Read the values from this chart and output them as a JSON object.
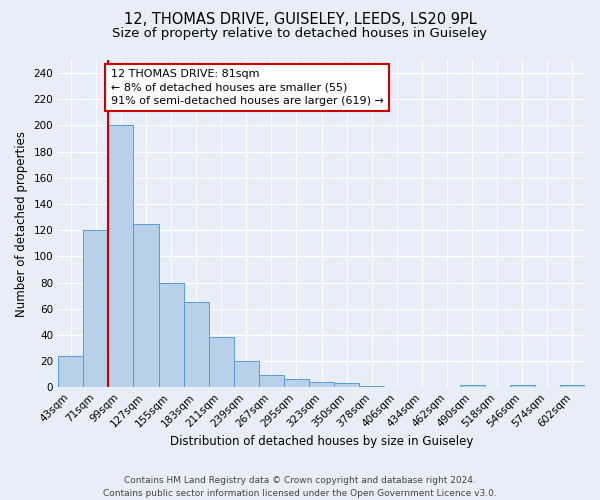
{
  "title_line1": "12, THOMAS DRIVE, GUISELEY, LEEDS, LS20 9PL",
  "title_line2": "Size of property relative to detached houses in Guiseley",
  "xlabel": "Distribution of detached houses by size in Guiseley",
  "ylabel": "Number of detached properties",
  "categories": [
    "43sqm",
    "71sqm",
    "99sqm",
    "127sqm",
    "155sqm",
    "183sqm",
    "211sqm",
    "239sqm",
    "267sqm",
    "295sqm",
    "323sqm",
    "350sqm",
    "378sqm",
    "406sqm",
    "434sqm",
    "462sqm",
    "490sqm",
    "518sqm",
    "546sqm",
    "574sqm",
    "602sqm"
  ],
  "values": [
    24,
    120,
    200,
    125,
    80,
    65,
    38,
    20,
    9,
    6,
    4,
    3,
    1,
    0,
    0,
    0,
    2,
    0,
    2,
    0,
    2
  ],
  "bar_color": "#b8d0ea",
  "bar_edge_color": "#5b9bd5",
  "vline_x_idx": 1.5,
  "vline_color": "#cc0000",
  "annotation_line1": "12 THOMAS DRIVE: 81sqm",
  "annotation_line2": "← 8% of detached houses are smaller (55)",
  "annotation_line3": "91% of semi-detached houses are larger (619) →",
  "annotation_box_color": "#ffffff",
  "annotation_box_edge": "#cc0000",
  "ylim": [
    0,
    250
  ],
  "yticks": [
    0,
    20,
    40,
    60,
    80,
    100,
    120,
    140,
    160,
    180,
    200,
    220,
    240
  ],
  "background_color": "#e8eef8",
  "grid_color": "#ffffff",
  "footer_line1": "Contains HM Land Registry data © Crown copyright and database right 2024.",
  "footer_line2": "Contains public sector information licensed under the Open Government Licence v3.0.",
  "title_fontsize": 10.5,
  "subtitle_fontsize": 9.5,
  "axis_label_fontsize": 8.5,
  "tick_fontsize": 7.5,
  "annotation_fontsize": 8,
  "footer_fontsize": 6.5
}
